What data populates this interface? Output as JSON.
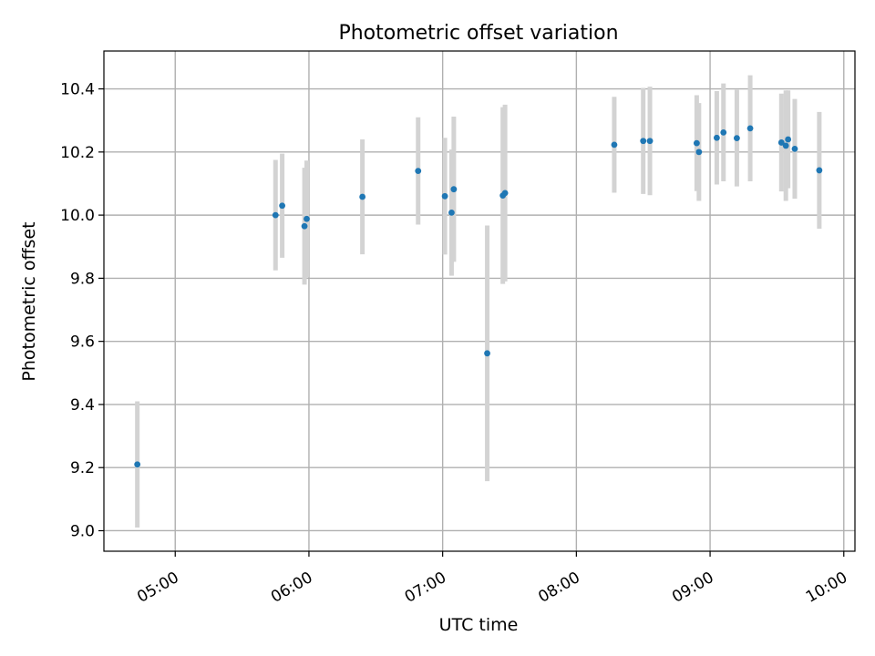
{
  "chart_data": {
    "type": "scatter",
    "title": "Photometric offset variation",
    "xlabel": "UTC time",
    "ylabel": "Photometric offset",
    "x_ticks": [
      "05:00",
      "06:00",
      "07:00",
      "08:00",
      "09:00",
      "10:00"
    ],
    "y_ticks": [
      "9.0",
      "9.2",
      "9.4",
      "9.6",
      "9.8",
      "10.0",
      "10.2",
      "10.4"
    ],
    "xlim": [
      "04:28",
      "10:05"
    ],
    "ylim": [
      8.935,
      10.52
    ],
    "grid": true,
    "colors": {
      "point": "#1f77b4",
      "errorbar": "#d3d3d3",
      "grid": "#b0b0b0"
    },
    "points": [
      {
        "x": "04:43",
        "y": 9.21,
        "yerr": 0.2
      },
      {
        "x": "05:45",
        "y": 10.0,
        "yerr": 0.175
      },
      {
        "x": "05:48",
        "y": 10.03,
        "yerr": 0.165
      },
      {
        "x": "05:58",
        "y": 9.965,
        "yerr": 0.185
      },
      {
        "x": "05:59",
        "y": 9.988,
        "yerr": 0.185
      },
      {
        "x": "06:24",
        "y": 10.058,
        "yerr": 0.182
      },
      {
        "x": "06:49",
        "y": 10.14,
        "yerr": 0.17
      },
      {
        "x": "07:01",
        "y": 10.06,
        "yerr": 0.185
      },
      {
        "x": "07:04",
        "y": 10.008,
        "yerr": 0.2
      },
      {
        "x": "07:05",
        "y": 10.082,
        "yerr": 0.23
      },
      {
        "x": "07:20",
        "y": 9.562,
        "yerr": 0.405
      },
      {
        "x": "07:27",
        "y": 10.062,
        "yerr": 0.28
      },
      {
        "x": "07:28",
        "y": 10.07,
        "yerr": 0.28
      },
      {
        "x": "08:17",
        "y": 10.223,
        "yerr": 0.152
      },
      {
        "x": "08:30",
        "y": 10.235,
        "yerr": 0.168
      },
      {
        "x": "08:33",
        "y": 10.235,
        "yerr": 0.172
      },
      {
        "x": "08:54",
        "y": 10.228,
        "yerr": 0.152
      },
      {
        "x": "08:55",
        "y": 10.2,
        "yerr": 0.155
      },
      {
        "x": "09:03",
        "y": 10.245,
        "yerr": 0.148
      },
      {
        "x": "09:06",
        "y": 10.262,
        "yerr": 0.155
      },
      {
        "x": "09:12",
        "y": 10.244,
        "yerr": 0.153
      },
      {
        "x": "09:18",
        "y": 10.275,
        "yerr": 0.168
      },
      {
        "x": "09:32",
        "y": 10.23,
        "yerr": 0.155
      },
      {
        "x": "09:34",
        "y": 10.22,
        "yerr": 0.175
      },
      {
        "x": "09:35",
        "y": 10.24,
        "yerr": 0.155
      },
      {
        "x": "09:38",
        "y": 10.21,
        "yerr": 0.158
      },
      {
        "x": "09:49",
        "y": 10.142,
        "yerr": 0.185
      }
    ]
  }
}
